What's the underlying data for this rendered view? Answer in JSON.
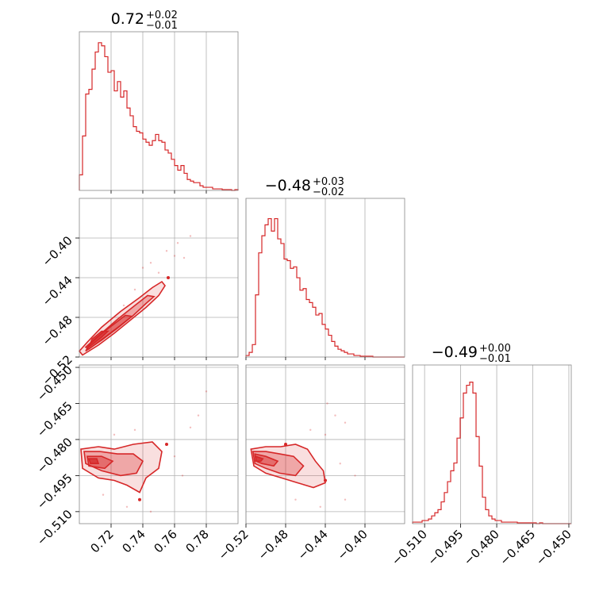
{
  "chart_data": {
    "type": "corner",
    "color": "#d62728",
    "grid": true,
    "params": [
      {
        "title": {
          "value": "0.72",
          "upper": "+0.02",
          "lower": "−0.01"
        },
        "range": [
          0.7,
          0.8
        ],
        "ticks": [
          {
            "v": 0.72,
            "label": "0.72"
          },
          {
            "v": 0.74,
            "label": "0.74"
          },
          {
            "v": 0.76,
            "label": "0.76"
          },
          {
            "v": 0.78,
            "label": "0.78"
          }
        ],
        "hist": [
          0.1,
          0.35,
          0.62,
          0.65,
          0.78,
          0.89,
          0.95,
          0.93,
          0.86,
          0.76,
          0.77,
          0.64,
          0.7,
          0.6,
          0.64,
          0.53,
          0.48,
          0.41,
          0.38,
          0.37,
          0.33,
          0.31,
          0.29,
          0.32,
          0.36,
          0.32,
          0.31,
          0.26,
          0.24,
          0.2,
          0.16,
          0.13,
          0.16,
          0.11,
          0.07,
          0.06,
          0.05,
          0.05,
          0.03,
          0.02,
          0.02,
          0.02,
          0.01,
          0.01,
          0.01,
          0.005,
          0.005,
          0.005,
          0.0,
          0.005
        ]
      },
      {
        "title": {
          "value": "−0.48",
          "upper": "+0.03",
          "lower": "−0.02"
        },
        "range": [
          -0.52,
          -0.36
        ],
        "ticks": [
          {
            "v": -0.52,
            "label": "−0.52"
          },
          {
            "v": -0.48,
            "label": "−0.48"
          },
          {
            "v": -0.44,
            "label": "−0.44"
          },
          {
            "v": -0.4,
            "label": "−0.40"
          }
        ],
        "hist": [
          0.01,
          0.03,
          0.08,
          0.4,
          0.67,
          0.78,
          0.85,
          0.89,
          0.81,
          0.89,
          0.76,
          0.73,
          0.63,
          0.62,
          0.57,
          0.58,
          0.51,
          0.43,
          0.44,
          0.37,
          0.35,
          0.32,
          0.27,
          0.28,
          0.21,
          0.18,
          0.14,
          0.1,
          0.07,
          0.05,
          0.04,
          0.03,
          0.02,
          0.02,
          0.01,
          0.01,
          0.005,
          0.005,
          0.005,
          0.005,
          0.0,
          0.0,
          0.0,
          0.0,
          0.0,
          0.0,
          0.0,
          0.0,
          0.0,
          0.0
        ]
      },
      {
        "title": {
          "value": "−0.49",
          "upper": "+0.00",
          "lower": "−0.01"
        },
        "range": [
          -0.515,
          -0.449
        ],
        "ticks": [
          {
            "v": -0.51,
            "label": "−0.510"
          },
          {
            "v": -0.495,
            "label": "−0.495"
          },
          {
            "v": -0.48,
            "label": "−0.480"
          },
          {
            "v": -0.465,
            "label": "−0.465"
          },
          {
            "v": -0.45,
            "label": "−0.450"
          }
        ],
        "hist": [
          0.01,
          0.01,
          0.01,
          0.02,
          0.02,
          0.03,
          0.05,
          0.07,
          0.09,
          0.14,
          0.2,
          0.27,
          0.34,
          0.39,
          0.55,
          0.68,
          0.84,
          0.89,
          0.91,
          0.84,
          0.56,
          0.37,
          0.17,
          0.09,
          0.05,
          0.03,
          0.02,
          0.02,
          0.01,
          0.01,
          0.01,
          0.01,
          0.01,
          0.005,
          0.005,
          0.005,
          0.005,
          0.005,
          0.005,
          0.0,
          0.005,
          0.0,
          0.0,
          0.0,
          0.0,
          0.0,
          0.0,
          0.0,
          0.0,
          0.0
        ]
      }
    ],
    "pairs": [
      {
        "row": 1,
        "col": 0,
        "contours": [
          [
            [
              0.702,
              -0.518
            ],
            [
              0.712,
              -0.508
            ],
            [
              0.722,
              -0.496
            ],
            [
              0.732,
              -0.483
            ],
            [
              0.742,
              -0.47
            ],
            [
              0.75,
              -0.458
            ],
            [
              0.754,
              -0.448
            ],
            [
              0.752,
              -0.444
            ],
            [
              0.746,
              -0.45
            ],
            [
              0.738,
              -0.46
            ],
            [
              0.726,
              -0.474
            ],
            [
              0.714,
              -0.49
            ],
            [
              0.705,
              -0.505
            ],
            [
              0.7,
              -0.514
            ]
          ],
          [
            [
              0.704,
              -0.514
            ],
            [
              0.714,
              -0.503
            ],
            [
              0.724,
              -0.491
            ],
            [
              0.734,
              -0.478
            ],
            [
              0.742,
              -0.466
            ],
            [
              0.747,
              -0.459
            ],
            [
              0.743,
              -0.458
            ],
            [
              0.735,
              -0.468
            ],
            [
              0.724,
              -0.482
            ],
            [
              0.714,
              -0.496
            ],
            [
              0.706,
              -0.508
            ]
          ],
          [
            [
              0.706,
              -0.512
            ],
            [
              0.716,
              -0.5
            ],
            [
              0.726,
              -0.488
            ],
            [
              0.733,
              -0.479
            ],
            [
              0.729,
              -0.478
            ],
            [
              0.72,
              -0.489
            ],
            [
              0.711,
              -0.5
            ],
            [
              0.704,
              -0.51
            ]
          ],
          [
            [
              0.706,
              -0.51
            ],
            [
              0.714,
              -0.5
            ],
            [
              0.718,
              -0.494
            ],
            [
              0.714,
              -0.494
            ],
            [
              0.708,
              -0.502
            ]
          ]
        ],
        "outliers": [
          [
            0.745,
            -0.425
          ],
          [
            0.76,
            -0.418
          ],
          [
            0.77,
            -0.398
          ],
          [
            0.762,
            -0.405
          ],
          [
            0.74,
            -0.43
          ],
          [
            0.755,
            -0.413
          ],
          [
            0.75,
            -0.435
          ],
          [
            0.766,
            -0.42
          ],
          [
            0.735,
            -0.452
          ],
          [
            0.728,
            -0.468
          ]
        ],
        "markers": [
          [
            0.756,
            -0.44
          ]
        ]
      },
      {
        "row": 2,
        "col": 0,
        "contours": [
          [
            [
              0.701,
              -0.484
            ],
            [
              0.712,
              -0.483
            ],
            [
              0.722,
              -0.484
            ],
            [
              0.734,
              -0.482
            ],
            [
              0.746,
              -0.481
            ],
            [
              0.752,
              -0.485
            ],
            [
              0.75,
              -0.492
            ],
            [
              0.742,
              -0.496
            ],
            [
              0.738,
              -0.502
            ],
            [
              0.73,
              -0.499
            ],
            [
              0.722,
              -0.497
            ],
            [
              0.712,
              -0.496
            ],
            [
              0.702,
              -0.492
            ]
          ],
          [
            [
              0.703,
              -0.485
            ],
            [
              0.713,
              -0.485
            ],
            [
              0.724,
              -0.486
            ],
            [
              0.734,
              -0.486
            ],
            [
              0.74,
              -0.489
            ],
            [
              0.736,
              -0.494
            ],
            [
              0.726,
              -0.495
            ],
            [
              0.714,
              -0.493
            ],
            [
              0.704,
              -0.49
            ]
          ],
          [
            [
              0.705,
              -0.487
            ],
            [
              0.714,
              -0.487
            ],
            [
              0.721,
              -0.489
            ],
            [
              0.716,
              -0.492
            ],
            [
              0.706,
              -0.491
            ]
          ],
          [
            [
              0.706,
              -0.488
            ],
            [
              0.711,
              -0.488
            ],
            [
              0.712,
              -0.49
            ],
            [
              0.707,
              -0.49
            ]
          ]
        ],
        "outliers": [
          [
            0.76,
            -0.487
          ],
          [
            0.77,
            -0.475
          ],
          [
            0.775,
            -0.47
          ],
          [
            0.745,
            -0.51
          ],
          [
            0.73,
            -0.508
          ],
          [
            0.78,
            -0.46
          ],
          [
            0.765,
            -0.495
          ],
          [
            0.722,
            -0.478
          ],
          [
            0.715,
            -0.503
          ],
          [
            0.735,
            -0.476
          ]
        ],
        "markers": [
          [
            0.755,
            -0.482
          ],
          [
            0.738,
            -0.505
          ]
        ]
      },
      {
        "row": 2,
        "col": 1,
        "contours": [
          [
            [
              -0.515,
              -0.484
            ],
            [
              -0.5,
              -0.483
            ],
            [
              -0.485,
              -0.483
            ],
            [
              -0.47,
              -0.482
            ],
            [
              -0.458,
              -0.484
            ],
            [
              -0.45,
              -0.489
            ],
            [
              -0.442,
              -0.493
            ],
            [
              -0.44,
              -0.498
            ],
            [
              -0.452,
              -0.5
            ],
            [
              -0.468,
              -0.498
            ],
            [
              -0.484,
              -0.496
            ],
            [
              -0.5,
              -0.494
            ],
            [
              -0.512,
              -0.491
            ]
          ],
          [
            [
              -0.513,
              -0.485
            ],
            [
              -0.5,
              -0.485
            ],
            [
              -0.486,
              -0.486
            ],
            [
              -0.472,
              -0.487
            ],
            [
              -0.462,
              -0.491
            ],
            [
              -0.47,
              -0.495
            ],
            [
              -0.486,
              -0.494
            ],
            [
              -0.5,
              -0.492
            ],
            [
              -0.511,
              -0.49
            ]
          ],
          [
            [
              -0.511,
              -0.486
            ],
            [
              -0.5,
              -0.487
            ],
            [
              -0.488,
              -0.489
            ],
            [
              -0.492,
              -0.491
            ],
            [
              -0.504,
              -0.49
            ],
            [
              -0.51,
              -0.489
            ]
          ],
          [
            [
              -0.51,
              -0.487
            ],
            [
              -0.503,
              -0.488
            ],
            [
              -0.505,
              -0.489
            ],
            [
              -0.51,
              -0.489
            ]
          ]
        ],
        "outliers": [
          [
            -0.44,
            -0.478
          ],
          [
            -0.43,
            -0.47
          ],
          [
            -0.42,
            -0.473
          ],
          [
            -0.42,
            -0.505
          ],
          [
            -0.445,
            -0.508
          ],
          [
            -0.425,
            -0.49
          ],
          [
            -0.455,
            -0.476
          ],
          [
            -0.47,
            -0.505
          ],
          [
            -0.41,
            -0.495
          ],
          [
            -0.438,
            -0.465
          ]
        ],
        "markers": [
          [
            -0.48,
            -0.482
          ],
          [
            -0.44,
            -0.497
          ]
        ]
      }
    ]
  }
}
